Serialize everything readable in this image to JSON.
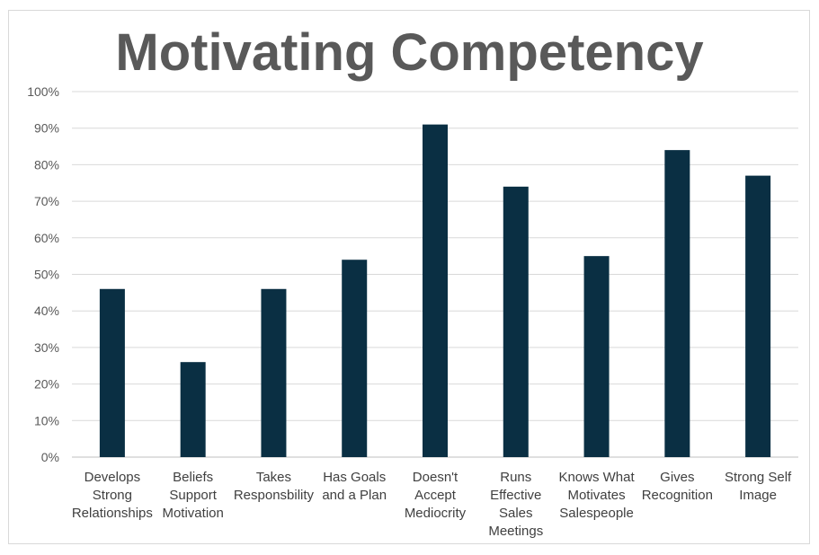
{
  "chart_data": {
    "type": "bar",
    "title": "Motivating Competency",
    "categories": [
      [
        "Develops",
        "Strong",
        "Relationships"
      ],
      [
        "Beliefs",
        "Support",
        "Motivation"
      ],
      [
        "Takes",
        "Responsbility"
      ],
      [
        "Has Goals",
        "and a Plan"
      ],
      [
        "Doesn't",
        "Accept",
        "Mediocrity"
      ],
      [
        "Runs",
        "Effective",
        "Sales",
        "Meetings"
      ],
      [
        "Knows What",
        "Motivates",
        "Salespeople"
      ],
      [
        "Gives",
        "Recognition"
      ],
      [
        "Strong Self",
        "Image"
      ]
    ],
    "values": [
      46,
      26,
      46,
      54,
      91,
      74,
      55,
      84,
      77
    ],
    "ylim": [
      0,
      100
    ],
    "yticks": [
      "0%",
      "10%",
      "20%",
      "30%",
      "40%",
      "50%",
      "60%",
      "70%",
      "80%",
      "90%",
      "100%"
    ],
    "xlabel": "",
    "ylabel": "",
    "grid": true,
    "legend": "none",
    "colors": {
      "bar": "#0a2f43",
      "grid": "#d9d9d9",
      "axis": "#bfbfbf"
    }
  }
}
